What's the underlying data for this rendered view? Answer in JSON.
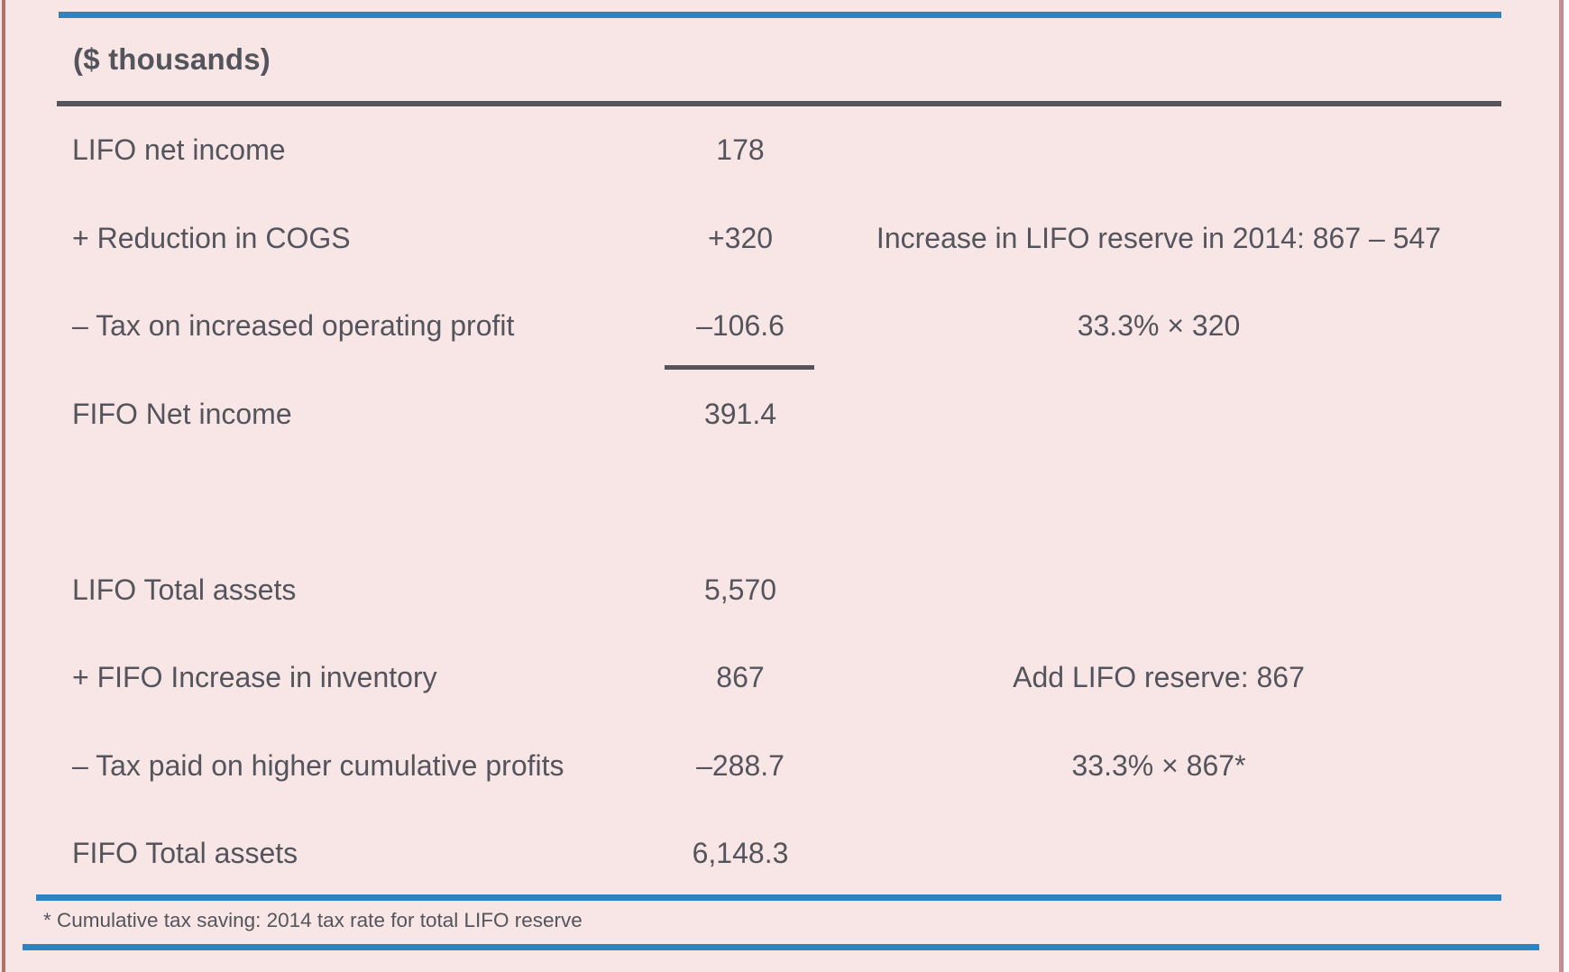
{
  "slide": {
    "units_header": "($ thousands)",
    "footnote": "* Cumulative tax saving: 2014 tax rate for total LIFO reserve"
  },
  "colors": {
    "background_pink": "#f8e6e6",
    "accent_blue": "#2b85c5",
    "rule_dark_gray": "#56535b",
    "text_gray": "#54545c",
    "frame_left_rose": "#aa7568",
    "frame_right_rose": "#c48e8e"
  },
  "table": {
    "rows": [
      {
        "label": "LIFO net income",
        "value": "178",
        "note": ""
      },
      {
        "label": "+ Reduction in COGS",
        "value": "+320",
        "note": "Increase in LIFO reserve in 2014: 867 – 547"
      },
      {
        "label": "– Tax on increased operating profit",
        "value": "–106.6",
        "note": "33.3% × 320"
      },
      {
        "label": "FIFO Net income",
        "value": "391.4",
        "note": ""
      },
      {
        "label": "",
        "value": "",
        "note": ""
      },
      {
        "label": "LIFO Total assets",
        "value": "5,570",
        "note": ""
      },
      {
        "label": "+ FIFO Increase in inventory",
        "value": "867",
        "note": "Add LIFO reserve: 867"
      },
      {
        "label": "– Tax paid on higher cumulative profits",
        "value": "–288.7",
        "note": "33.3% × 867*"
      },
      {
        "label": "FIFO Total assets",
        "value": "6,148.3",
        "note": ""
      }
    ]
  }
}
